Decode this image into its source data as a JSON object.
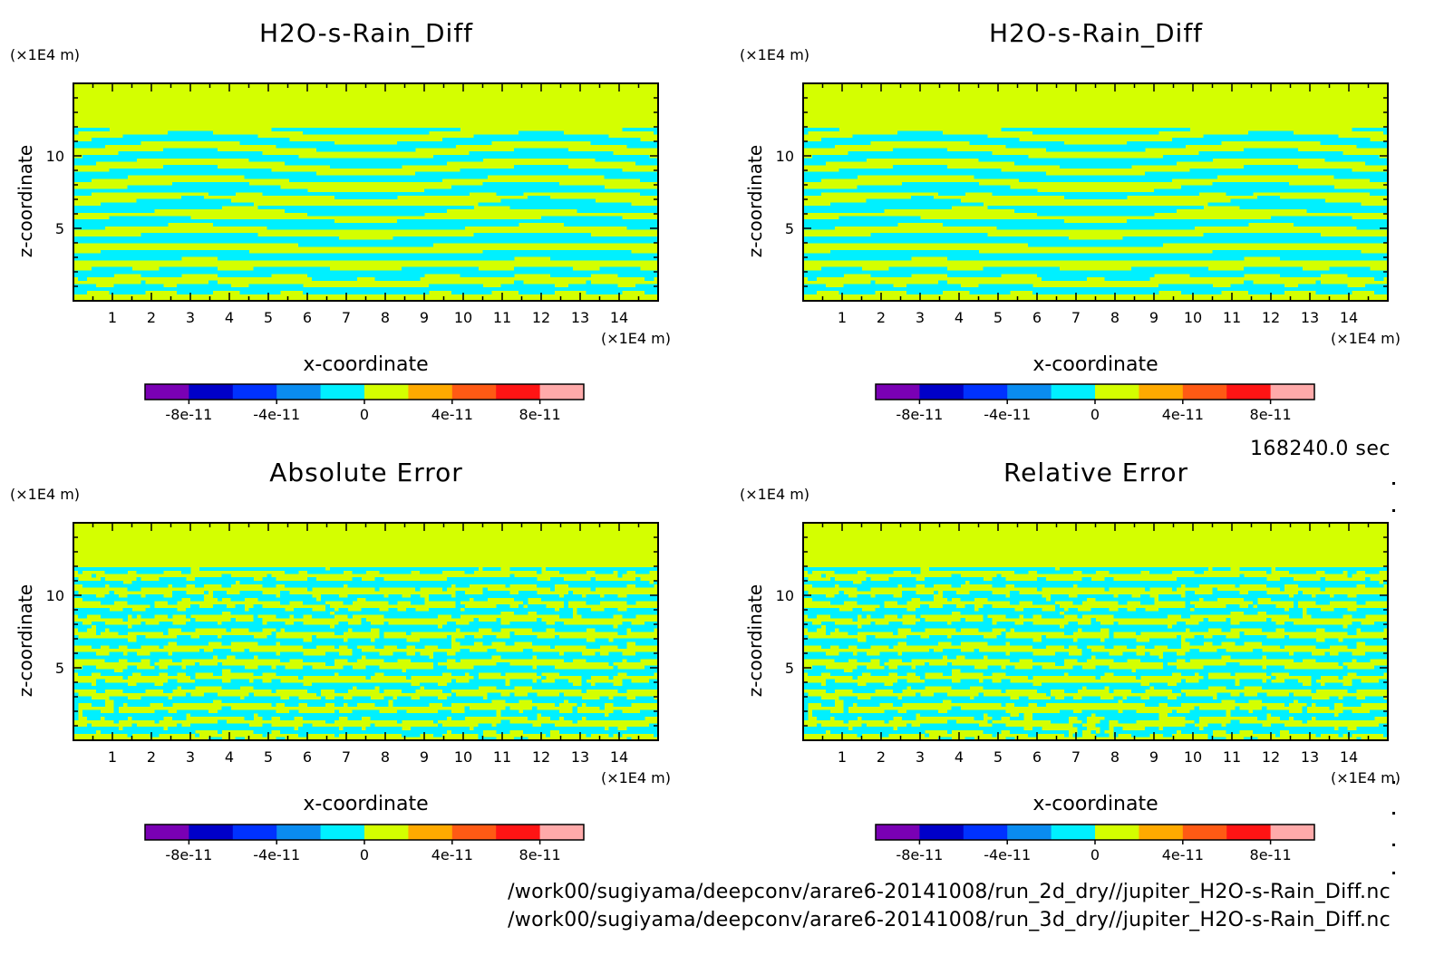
{
  "colors": {
    "fill_zero_positive": "#d4ff00",
    "fill_zero_negative": "#00f0ff",
    "frame": "#000000"
  },
  "colorbar": {
    "colors": [
      "#7a00b4",
      "#0000c8",
      "#0032ff",
      "#0a8cf0",
      "#00f0ff",
      "#d4ff00",
      "#ffaa00",
      "#ff5a14",
      "#ff1414",
      "#ffaaaa"
    ],
    "tick_labels": [
      "-8e-11",
      "-4e-11",
      "0",
      "4e-11",
      "8e-11"
    ],
    "tick_values": [
      -8e-11,
      -4e-11,
      0,
      4e-11,
      8e-11
    ],
    "range": [
      -1e-10,
      1e-10
    ]
  },
  "chart_data": [
    {
      "id": "top-left",
      "type": "heatmap",
      "title": "H2O-s-Rain_Diff",
      "xlabel": "x-coordinate",
      "ylabel": "z-coordinate",
      "x_unit": "(×1E4 m)",
      "y_unit": "(×1E4 m)",
      "xlim": [
        0,
        15
      ],
      "ylim": [
        0,
        15
      ],
      "x_ticks": [
        1,
        2,
        3,
        4,
        5,
        6,
        7,
        8,
        9,
        10,
        11,
        12,
        13,
        14
      ],
      "y_ticks": [
        5,
        10
      ],
      "uniform_top_above": 12,
      "pattern": "smooth"
    },
    {
      "id": "top-right",
      "type": "heatmap",
      "title": "H2O-s-Rain_Diff",
      "xlabel": "x-coordinate",
      "ylabel": "z-coordinate",
      "x_unit": "(×1E4 m)",
      "y_unit": "(×1E4 m)",
      "xlim": [
        0,
        15
      ],
      "ylim": [
        0,
        15
      ],
      "x_ticks": [
        1,
        2,
        3,
        4,
        5,
        6,
        7,
        8,
        9,
        10,
        11,
        12,
        13,
        14
      ],
      "y_ticks": [
        5,
        10
      ],
      "uniform_top_above": 12,
      "pattern": "smooth"
    },
    {
      "id": "bottom-left",
      "type": "heatmap",
      "title": "Absolute Error",
      "xlabel": "x-coordinate",
      "ylabel": "z-coordinate",
      "x_unit": "(×1E4 m)",
      "y_unit": "(×1E4 m)",
      "xlim": [
        0,
        15
      ],
      "ylim": [
        0,
        15
      ],
      "x_ticks": [
        1,
        2,
        3,
        4,
        5,
        6,
        7,
        8,
        9,
        10,
        11,
        12,
        13,
        14
      ],
      "y_ticks": [
        5,
        10
      ],
      "uniform_top_above": 12,
      "pattern": "noisy"
    },
    {
      "id": "bottom-right",
      "type": "heatmap",
      "title": "Relative Error",
      "xlabel": "x-coordinate",
      "ylabel": "z-coordinate",
      "x_unit": "(×1E4 m)",
      "y_unit": "(×1E4 m)",
      "xlim": [
        0,
        15
      ],
      "ylim": [
        0,
        15
      ],
      "x_ticks": [
        1,
        2,
        3,
        4,
        5,
        6,
        7,
        8,
        9,
        10,
        11,
        12,
        13,
        14
      ],
      "y_ticks": [
        5,
        10
      ],
      "uniform_top_above": 12,
      "pattern": "noisy-dome"
    }
  ],
  "footer": {
    "time": "168240.0 sec",
    "path_1": "/work00/sugiyama/deepconv/arare6-20141008/run_2d_dry//jupiter_H2O-s-Rain_Diff.nc",
    "path_2": "/work00/sugiyama/deepconv/arare6-20141008/run_3d_dry//jupiter_H2O-s-Rain_Diff.nc"
  }
}
